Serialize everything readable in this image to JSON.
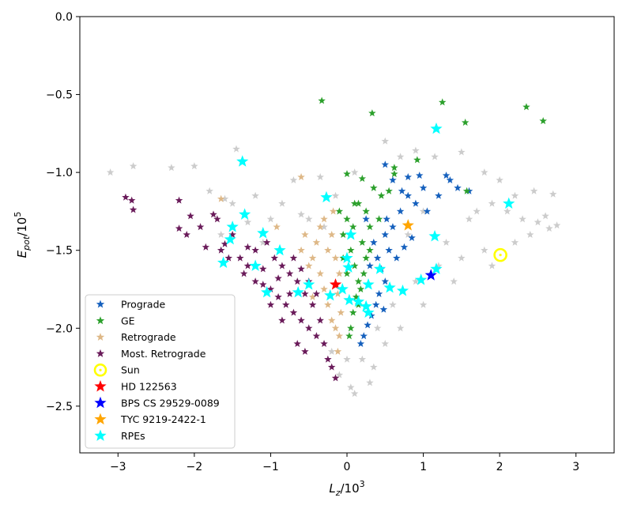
{
  "chart_data": {
    "type": "scatter",
    "xlabel": {
      "main": "L",
      "sub": "z",
      "tail": "/10",
      "sup": "3"
    },
    "ylabel": {
      "main": "E",
      "sub": "pot",
      "tail": "/10",
      "sup": "5"
    },
    "xlim": [
      -3.5,
      3.5
    ],
    "ylim": [
      -2.8,
      0.0
    ],
    "xticks": [
      -3,
      -2,
      -1,
      0,
      1,
      2,
      3
    ],
    "xtick_labels": [
      "−3",
      "−2",
      "−1",
      "0",
      "1",
      "2",
      "3"
    ],
    "yticks": [
      0.0,
      -0.5,
      -1.0,
      -1.5,
      -2.0,
      -2.5
    ],
    "ytick_labels": [
      "0.0",
      "−0.5",
      "−1.0",
      "−1.5",
      "−2.0",
      "−2.5"
    ],
    "legend_position": "lower-left",
    "background_population": {
      "color": "#cccccc",
      "points": [
        [
          -3.1,
          -1.0
        ],
        [
          -2.8,
          -0.96
        ],
        [
          -2.3,
          -0.97
        ],
        [
          -2.0,
          -0.96
        ],
        [
          -1.45,
          -0.85
        ],
        [
          -1.6,
          -1.17
        ],
        [
          -0.7,
          -1.05
        ],
        [
          -0.35,
          -1.03
        ],
        [
          -0.15,
          -1.15
        ],
        [
          0.1,
          -1.0
        ],
        [
          0.5,
          -0.8
        ],
        [
          0.7,
          -0.9
        ],
        [
          0.9,
          -0.86
        ],
        [
          1.15,
          -0.9
        ],
        [
          1.5,
          -0.87
        ],
        [
          1.8,
          -1.0
        ],
        [
          2.0,
          -1.05
        ],
        [
          2.2,
          -1.15
        ],
        [
          2.45,
          -1.12
        ],
        [
          2.7,
          -1.14
        ],
        [
          2.3,
          -1.3
        ],
        [
          2.5,
          -1.32
        ],
        [
          2.65,
          -1.36
        ],
        [
          2.75,
          -1.34
        ],
        [
          1.7,
          -1.25
        ],
        [
          1.9,
          -1.2
        ],
        [
          2.1,
          -1.25
        ],
        [
          -1.8,
          -1.12
        ],
        [
          -1.5,
          -1.2
        ],
        [
          -1.2,
          -1.15
        ],
        [
          -1.0,
          -1.3
        ],
        [
          -0.85,
          -1.2
        ],
        [
          -0.6,
          -1.27
        ],
        [
          2.4,
          -1.4
        ],
        [
          2.2,
          -1.45
        ],
        [
          1.8,
          -1.5
        ],
        [
          1.5,
          -1.55
        ],
        [
          1.2,
          -1.6
        ],
        [
          0.9,
          -1.7
        ],
        [
          0.6,
          -1.85
        ],
        [
          0.4,
          -2.0
        ],
        [
          0.2,
          -2.2
        ],
        [
          0.05,
          -2.38
        ],
        [
          0.1,
          -2.42
        ],
        [
          -0.1,
          -2.3
        ],
        [
          -0.2,
          -2.15
        ],
        [
          1.9,
          -1.6
        ],
        [
          1.4,
          -1.7
        ],
        [
          1.0,
          -1.85
        ],
        [
          0.7,
          -2.0
        ],
        [
          0.5,
          -2.1
        ],
        [
          0.35,
          -2.25
        ],
        [
          -1.3,
          -1.32
        ],
        [
          -1.65,
          -1.4
        ],
        [
          2.6,
          -1.28
        ],
        [
          1.6,
          -1.3
        ],
        [
          1.0,
          -1.25
        ],
        [
          0.8,
          -1.4
        ],
        [
          1.3,
          -1.45
        ],
        [
          -0.5,
          -1.3
        ],
        [
          -0.3,
          -1.35
        ],
        [
          -1.1,
          -1.45
        ],
        [
          0.3,
          -2.35
        ],
        [
          0.0,
          -2.2
        ]
      ]
    },
    "series": [
      {
        "name": "Prograde",
        "color": "#1560bd",
        "marker": "star",
        "size": 6,
        "points": [
          [
            0.25,
            -1.3
          ],
          [
            0.35,
            -1.45
          ],
          [
            0.4,
            -1.55
          ],
          [
            0.45,
            -1.62
          ],
          [
            0.5,
            -1.7
          ],
          [
            0.42,
            -1.78
          ],
          [
            0.38,
            -1.85
          ],
          [
            0.32,
            -1.92
          ],
          [
            0.27,
            -1.98
          ],
          [
            0.22,
            -2.05
          ],
          [
            0.18,
            -2.1
          ],
          [
            0.5,
            -1.4
          ],
          [
            0.6,
            -1.35
          ],
          [
            0.7,
            -1.25
          ],
          [
            0.8,
            -1.15
          ],
          [
            0.9,
            -1.2
          ],
          [
            1.0,
            -1.1
          ],
          [
            1.05,
            -1.25
          ],
          [
            1.2,
            -1.15
          ],
          [
            1.35,
            -1.05
          ],
          [
            1.45,
            -1.1
          ],
          [
            0.8,
            -1.03
          ],
          [
            0.95,
            -1.02
          ],
          [
            0.55,
            -1.5
          ],
          [
            0.65,
            -1.55
          ],
          [
            0.75,
            -1.48
          ],
          [
            0.85,
            -1.42
          ],
          [
            0.6,
            -1.05
          ],
          [
            0.5,
            -0.95
          ],
          [
            0.3,
            -1.6
          ],
          [
            0.48,
            -1.88
          ],
          [
            0.52,
            -1.3
          ],
          [
            0.72,
            -1.12
          ],
          [
            1.3,
            -1.02
          ],
          [
            1.6,
            -1.12
          ]
        ]
      },
      {
        "name": "GE",
        "color": "#2ca02c",
        "marker": "star",
        "size": 6,
        "points": [
          [
            -0.33,
            -0.54
          ],
          [
            0.33,
            -0.62
          ],
          [
            1.25,
            -0.55
          ],
          [
            1.55,
            -0.68
          ],
          [
            2.35,
            -0.58
          ],
          [
            2.57,
            -0.67
          ],
          [
            0.92,
            -0.92
          ],
          [
            0.62,
            -0.97
          ],
          [
            0.62,
            -1.01
          ],
          [
            0.0,
            -1.01
          ],
          [
            0.2,
            -1.04
          ],
          [
            0.35,
            -1.1
          ],
          [
            0.45,
            -1.15
          ],
          [
            0.55,
            -1.12
          ],
          [
            0.1,
            -1.2
          ],
          [
            0.0,
            -1.3
          ],
          [
            -0.05,
            -1.4
          ],
          [
            0.05,
            -1.5
          ],
          [
            0.1,
            -1.6
          ],
          [
            0.15,
            -1.7
          ],
          [
            0.12,
            -1.8
          ],
          [
            0.08,
            -1.9
          ],
          [
            0.05,
            -2.0
          ],
          [
            0.03,
            -2.05
          ],
          [
            0.2,
            -1.45
          ],
          [
            0.25,
            -1.55
          ],
          [
            0.22,
            -1.65
          ],
          [
            0.18,
            -1.75
          ],
          [
            0.15,
            -1.85
          ],
          [
            0.3,
            -1.35
          ],
          [
            0.25,
            -1.25
          ],
          [
            -0.1,
            -1.25
          ],
          [
            -0.05,
            -1.55
          ],
          [
            0.0,
            -1.65
          ],
          [
            0.08,
            -1.35
          ],
          [
            0.3,
            -1.5
          ],
          [
            0.15,
            -1.2
          ],
          [
            0.42,
            -1.3
          ],
          [
            1.57,
            -1.12
          ]
        ]
      },
      {
        "name": "Retrograde",
        "color": "#deb887",
        "marker": "star",
        "size": 6,
        "points": [
          [
            -0.3,
            -1.3
          ],
          [
            -0.2,
            -1.4
          ],
          [
            -0.15,
            -1.55
          ],
          [
            -0.1,
            -1.65
          ],
          [
            -0.12,
            -1.78
          ],
          [
            -0.08,
            -1.9
          ],
          [
            -0.1,
            -2.05
          ],
          [
            -0.12,
            -2.15
          ],
          [
            -0.4,
            -1.45
          ],
          [
            -0.45,
            -1.55
          ],
          [
            -0.5,
            -1.6
          ],
          [
            -0.35,
            -1.65
          ],
          [
            -0.3,
            -1.75
          ],
          [
            -0.25,
            -1.85
          ],
          [
            -0.2,
            -1.95
          ],
          [
            -0.55,
            -1.4
          ],
          [
            -0.6,
            -1.5
          ],
          [
            -0.35,
            -1.35
          ],
          [
            -0.25,
            -1.5
          ],
          [
            -0.18,
            -1.25
          ],
          [
            -0.92,
            -1.35
          ],
          [
            -0.6,
            -1.03
          ],
          [
            -1.65,
            -1.17
          ],
          [
            -0.45,
            -1.8
          ],
          [
            -0.15,
            -2.0
          ]
        ]
      },
      {
        "name": "Most. Retrograde",
        "color": "#6a1b5a",
        "marker": "star",
        "size": 6,
        "points": [
          [
            -2.9,
            -1.16
          ],
          [
            -2.82,
            -1.18
          ],
          [
            -2.8,
            -1.24
          ],
          [
            -2.2,
            -1.18
          ],
          [
            -2.05,
            -1.28
          ],
          [
            -1.92,
            -1.35
          ],
          [
            -1.75,
            -1.27
          ],
          [
            -1.7,
            -1.3
          ],
          [
            -1.85,
            -1.48
          ],
          [
            -2.2,
            -1.36
          ],
          [
            -2.1,
            -1.4
          ],
          [
            -1.65,
            -1.5
          ],
          [
            -1.55,
            -1.55
          ],
          [
            -1.4,
            -1.55
          ],
          [
            -1.3,
            -1.6
          ],
          [
            -1.35,
            -1.65
          ],
          [
            -1.2,
            -1.7
          ],
          [
            -1.1,
            -1.72
          ],
          [
            -1.0,
            -1.75
          ],
          [
            -0.9,
            -1.8
          ],
          [
            -0.8,
            -1.85
          ],
          [
            -0.7,
            -1.9
          ],
          [
            -0.6,
            -1.95
          ],
          [
            -0.5,
            -2.0
          ],
          [
            -0.4,
            -2.05
          ],
          [
            -0.3,
            -2.1
          ],
          [
            -0.25,
            -2.2
          ],
          [
            -0.2,
            -2.25
          ],
          [
            -0.15,
            -2.32
          ],
          [
            -1.0,
            -1.85
          ],
          [
            -0.85,
            -1.95
          ],
          [
            -0.65,
            -2.1
          ],
          [
            -0.55,
            -2.15
          ],
          [
            -1.2,
            -1.5
          ],
          [
            -1.05,
            -1.45
          ],
          [
            -0.95,
            -1.55
          ],
          [
            -0.85,
            -1.6
          ],
          [
            -0.75,
            -1.65
          ],
          [
            -0.65,
            -1.7
          ],
          [
            -0.55,
            -1.78
          ],
          [
            -0.45,
            -1.85
          ],
          [
            -0.35,
            -1.95
          ],
          [
            -0.9,
            -1.68
          ],
          [
            -0.75,
            -1.78
          ],
          [
            -1.1,
            -1.62
          ],
          [
            -1.3,
            -1.48
          ],
          [
            -1.5,
            -1.4
          ],
          [
            -1.6,
            -1.46
          ],
          [
            -0.7,
            -1.55
          ],
          [
            -0.6,
            -1.62
          ],
          [
            -0.5,
            -1.7
          ],
          [
            -0.4,
            -1.78
          ]
        ]
      }
    ],
    "highlighted": [
      {
        "name": "Sun",
        "color": "#ffff00",
        "marker": "circle-dot",
        "points": [
          [
            2.01,
            -1.53
          ]
        ]
      },
      {
        "name": "HD 122563",
        "color": "#ff0000",
        "marker": "star-large",
        "points": [
          [
            -0.15,
            -1.72
          ]
        ]
      },
      {
        "name": "BPS CS 29529-0089",
        "color": "#0000ff",
        "marker": "star-large",
        "points": [
          [
            1.1,
            -1.66
          ]
        ]
      },
      {
        "name": "TYC 9219-2422-1",
        "color": "#ffa500",
        "marker": "star-large",
        "points": [
          [
            0.8,
            -1.34
          ]
        ]
      },
      {
        "name": "RPEs",
        "color": "#00ffff",
        "marker": "star-large",
        "points": [
          [
            1.17,
            -0.72
          ],
          [
            -1.37,
            -0.93
          ],
          [
            -0.27,
            -1.16
          ],
          [
            2.12,
            -1.2
          ],
          [
            -1.34,
            -1.27
          ],
          [
            -1.5,
            -1.35
          ],
          [
            -1.1,
            -1.39
          ],
          [
            -1.53,
            -1.43
          ],
          [
            0.05,
            -1.4
          ],
          [
            1.15,
            -1.41
          ],
          [
            -0.88,
            -1.5
          ],
          [
            -1.62,
            -1.58
          ],
          [
            -1.2,
            -1.6
          ],
          [
            0.0,
            -1.55
          ],
          [
            0.02,
            -1.61
          ],
          [
            1.17,
            -1.62
          ],
          [
            -0.5,
            -1.72
          ],
          [
            -0.06,
            -1.75
          ],
          [
            0.28,
            -1.72
          ],
          [
            0.56,
            -1.74
          ],
          [
            0.73,
            -1.76
          ],
          [
            -0.64,
            -1.77
          ],
          [
            -1.05,
            -1.77
          ],
          [
            -0.22,
            -1.79
          ],
          [
            0.43,
            -1.62
          ],
          [
            0.97,
            -1.69
          ],
          [
            0.15,
            -1.83
          ],
          [
            0.25,
            -1.86
          ],
          [
            0.03,
            -1.82
          ],
          [
            0.28,
            -1.9
          ]
        ]
      }
    ]
  }
}
